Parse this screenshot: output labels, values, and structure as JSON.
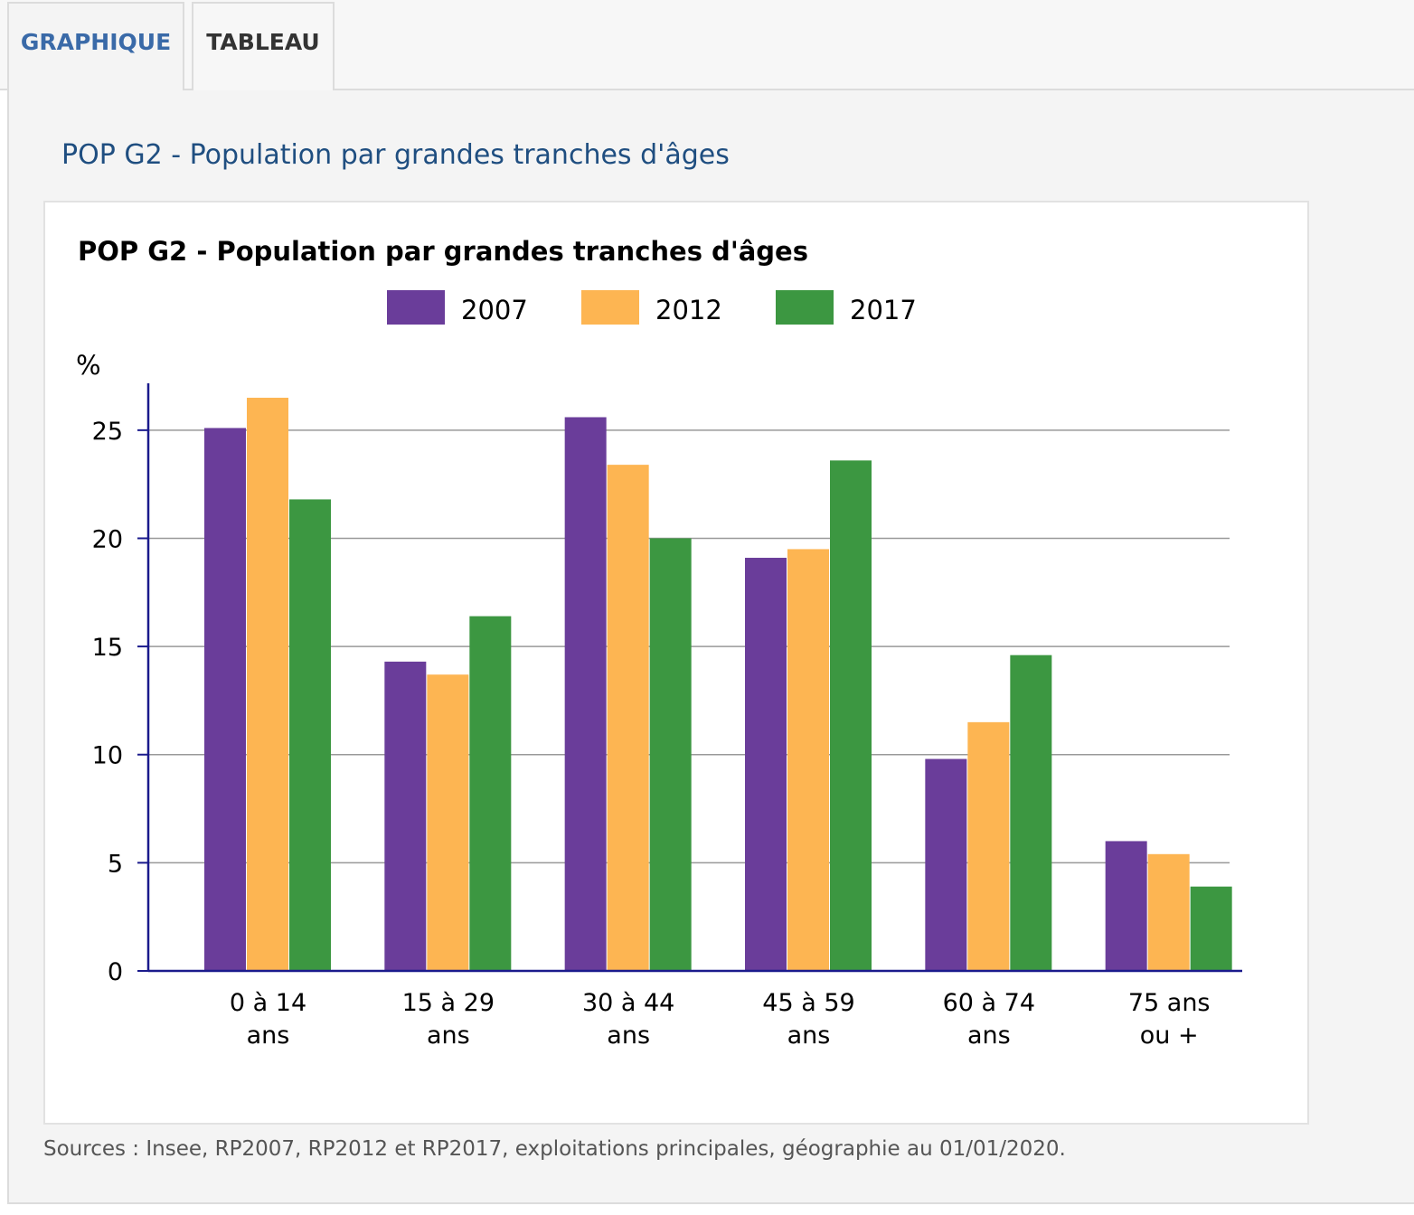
{
  "tabs": [
    {
      "label": "GRAPHIQUE",
      "active": true
    },
    {
      "label": "TABLEAU",
      "active": false
    }
  ],
  "section": {
    "title": "POP G2 - Population par grandes tranches d'âges"
  },
  "sources": "Sources : Insee, RP2007, RP2012 et RP2017, exploitations principales, géographie au 01/01/2020.",
  "colors": {
    "accent": "#3a6aa8",
    "title": "#1f4e80",
    "series_2007": "#6a3d9a",
    "series_2012": "#fdb552",
    "series_2017": "#3c9741",
    "axis": "#1a1a8c",
    "grid": "#999999"
  },
  "chart_data": {
    "type": "bar",
    "title": "POP G2 - Population par grandes tranches d'âges",
    "ylabel": "%",
    "xlabel": "",
    "ylim": [
      0,
      27
    ],
    "yticks": [
      0,
      5,
      10,
      15,
      20,
      25
    ],
    "grid": true,
    "legend_position": "top",
    "categories": [
      [
        "0 à 14",
        "ans"
      ],
      [
        "15 à 29",
        "ans"
      ],
      [
        "30 à 44",
        "ans"
      ],
      [
        "45 à 59",
        "ans"
      ],
      [
        "60 à 74",
        "ans"
      ],
      [
        "75 ans",
        "ou +"
      ]
    ],
    "series": [
      {
        "name": "2007",
        "color": "#6a3d9a",
        "values": [
          25.1,
          14.3,
          25.6,
          19.1,
          9.8,
          6.0
        ]
      },
      {
        "name": "2012",
        "color": "#fdb552",
        "values": [
          26.5,
          13.7,
          23.4,
          19.5,
          11.5,
          5.4
        ]
      },
      {
        "name": "2017",
        "color": "#3c9741",
        "values": [
          21.8,
          16.4,
          20.0,
          23.6,
          14.6,
          3.9
        ]
      }
    ]
  }
}
